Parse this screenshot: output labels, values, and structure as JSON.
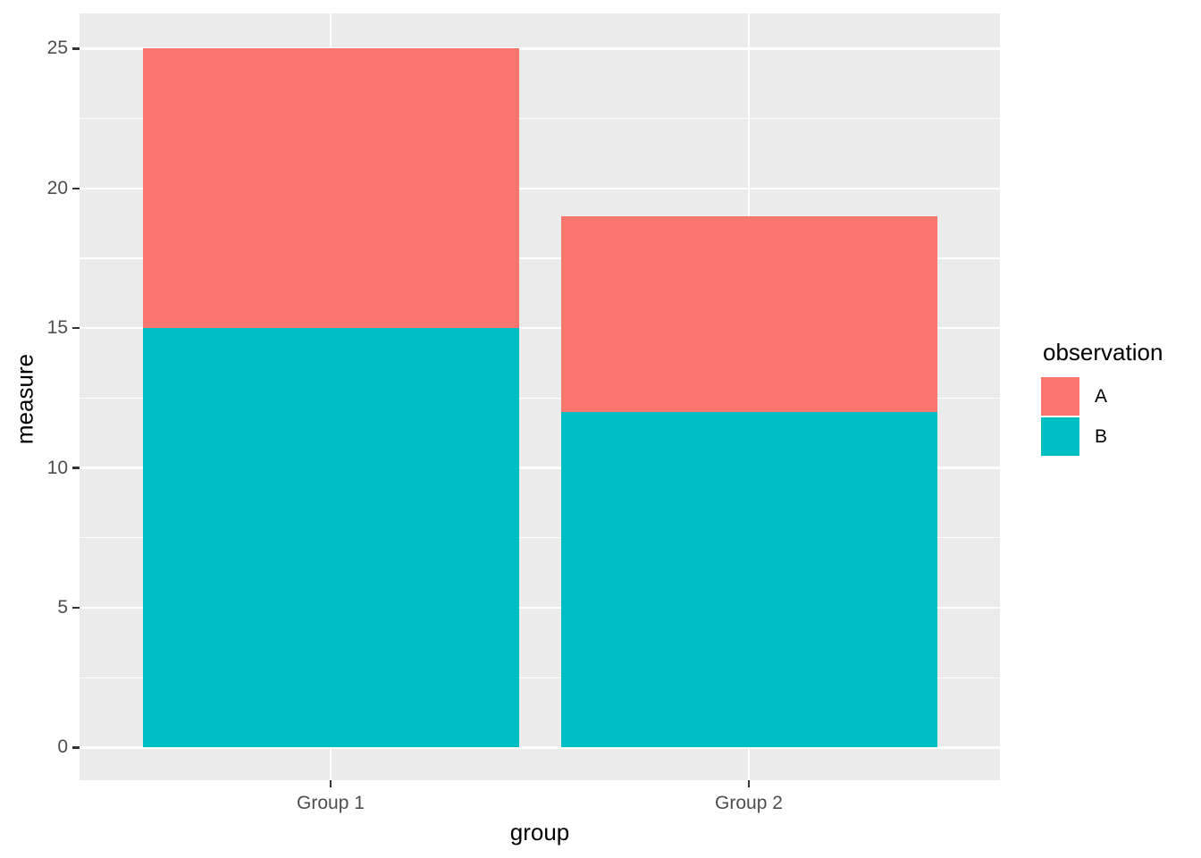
{
  "figure": {
    "background": "#FFFFFF",
    "panel_background": "#EBEBEB",
    "grid_color": "#FFFFFF",
    "axis_text_color": "#4D4D4D",
    "axis_title_color": "#000000",
    "tick_mark_color": "#333333"
  },
  "chart_data": {
    "type": "bar",
    "stacked": true,
    "title": "",
    "xlabel": "group",
    "ylabel": "measure",
    "categories": [
      "Group 1",
      "Group 2"
    ],
    "series": [
      {
        "name": "A",
        "color": "#F8766D",
        "values": [
          10,
          7
        ]
      },
      {
        "name": "B",
        "color": "#00BFC4",
        "values": [
          15,
          12
        ]
      }
    ],
    "stack_order_bottom_to_top": [
      "B",
      "A"
    ],
    "totals": [
      25,
      19
    ],
    "ylim": [
      0,
      25
    ],
    "y_major_breaks": [
      0,
      5,
      10,
      15,
      20,
      25
    ],
    "y_minor_breaks": [
      2.5,
      7.5,
      12.5,
      17.5,
      22.5
    ],
    "grid": true,
    "legend_position": "right"
  },
  "axes": {
    "x_title": "group",
    "y_title": "measure",
    "x_tick_labels": [
      "Group 1",
      "Group 2"
    ],
    "y_tick_labels": [
      "0",
      "5",
      "10",
      "15",
      "20",
      "25"
    ]
  },
  "legend": {
    "title": "observation",
    "items": [
      {
        "label": "A",
        "color": "#F8766D"
      },
      {
        "label": "B",
        "color": "#00BFC4"
      }
    ]
  }
}
